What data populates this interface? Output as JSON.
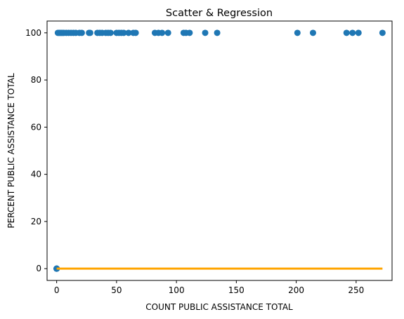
{
  "chart_data": {
    "type": "scatter",
    "title": "Scatter & Regression",
    "xlabel": "COUNT PUBLIC ASSISTANCE TOTAL",
    "ylabel": "PERCENT PUBLIC ASSISTANCE TOTAL",
    "xlim": [
      -8,
      280
    ],
    "ylim": [
      -5,
      105
    ],
    "xticks": [
      0,
      50,
      100,
      150,
      200,
      250
    ],
    "yticks": [
      0,
      20,
      40,
      60,
      80,
      100
    ],
    "grid": false,
    "series": [
      {
        "kind": "scatter",
        "color": "#1f77b4",
        "points": [
          [
            0,
            0
          ],
          [
            0,
            0
          ],
          [
            0,
            0
          ],
          [
            0,
            0
          ],
          [
            0,
            0
          ],
          [
            1,
            100
          ],
          [
            2,
            100
          ],
          [
            3,
            100
          ],
          [
            4,
            100
          ],
          [
            5,
            100
          ],
          [
            6,
            100
          ],
          [
            8,
            100
          ],
          [
            10,
            100
          ],
          [
            12,
            100
          ],
          [
            14,
            100
          ],
          [
            16,
            100
          ],
          [
            19,
            100
          ],
          [
            21,
            100
          ],
          [
            27,
            100
          ],
          [
            28,
            100
          ],
          [
            34,
            100
          ],
          [
            36,
            100
          ],
          [
            38,
            100
          ],
          [
            41,
            100
          ],
          [
            43,
            100
          ],
          [
            45,
            100
          ],
          [
            50,
            100
          ],
          [
            52,
            100
          ],
          [
            54,
            100
          ],
          [
            56,
            100
          ],
          [
            60,
            100
          ],
          [
            64,
            100
          ],
          [
            66,
            100
          ],
          [
            82,
            100
          ],
          [
            85,
            100
          ],
          [
            88,
            100
          ],
          [
            93,
            100
          ],
          [
            106,
            100
          ],
          [
            108,
            100
          ],
          [
            111,
            100
          ],
          [
            124,
            100
          ],
          [
            134,
            100
          ],
          [
            201,
            100
          ],
          [
            214,
            100
          ],
          [
            242,
            100
          ],
          [
            247,
            100
          ],
          [
            252,
            100
          ],
          [
            272,
            100
          ]
        ]
      },
      {
        "kind": "line",
        "color": "#ffa500",
        "x": [
          0,
          272
        ],
        "y": [
          0,
          0
        ]
      }
    ]
  }
}
